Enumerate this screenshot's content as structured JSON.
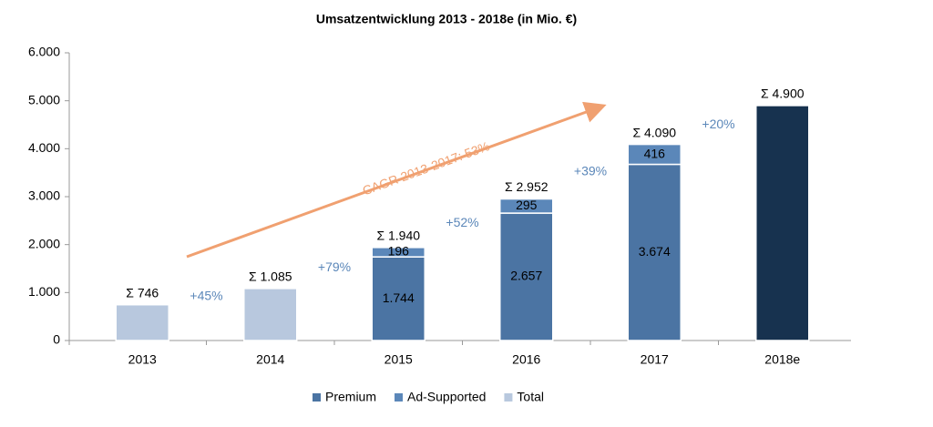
{
  "chart_data": {
    "type": "stacked-bar",
    "title": "Umsatzentwicklung 2013 - 2018e (in Mio. €)",
    "categories": [
      "2013",
      "2014",
      "2015",
      "2016",
      "2017",
      "2018e"
    ],
    "series": [
      {
        "name": "Premium",
        "color": "#4b74a3",
        "values": [
          null,
          null,
          1744,
          2657,
          3674,
          null
        ],
        "value_labels": [
          null,
          null,
          "1.744",
          "2.657",
          "3.674",
          null
        ]
      },
      {
        "name": "Ad-Supported",
        "color": "#5b87b9",
        "values": [
          null,
          null,
          196,
          295,
          416,
          null
        ],
        "value_labels": [
          null,
          null,
          "196",
          "295",
          "416",
          null
        ]
      },
      {
        "name": "Total",
        "color": "#b8c8de",
        "point_colors": [
          null,
          null,
          null,
          null,
          null,
          "#17324f"
        ],
        "values": [
          746,
          1085,
          null,
          null,
          null,
          4900
        ],
        "value_labels": [
          "Σ 746",
          "Σ 1.085",
          null,
          null,
          null,
          "Σ 4.900"
        ]
      }
    ],
    "stack_totals": [
      null,
      null,
      1940,
      2952,
      4090,
      null
    ],
    "stack_total_labels": [
      null,
      null,
      "Σ 1.940",
      "Σ 2.952",
      "Σ 4.090",
      null
    ],
    "growth_labels": [
      "+45%",
      "+79%",
      "+52%",
      "+39%",
      "+20%"
    ],
    "trend_annotation": "CAGR 2013-2017: 53%",
    "ylim": [
      0,
      6000
    ],
    "yticks": [
      0,
      {
        "value": 1000,
        "label": "1.000"
      },
      {
        "value": 2000,
        "label": "2.000"
      },
      {
        "value": 3000,
        "label": "3.000"
      },
      {
        "value": 4000,
        "label": "4.000"
      },
      {
        "value": 5000,
        "label": "5.000"
      },
      {
        "value": 6000,
        "label": "6.000"
      }
    ],
    "grid": false,
    "legend": "bottom"
  }
}
